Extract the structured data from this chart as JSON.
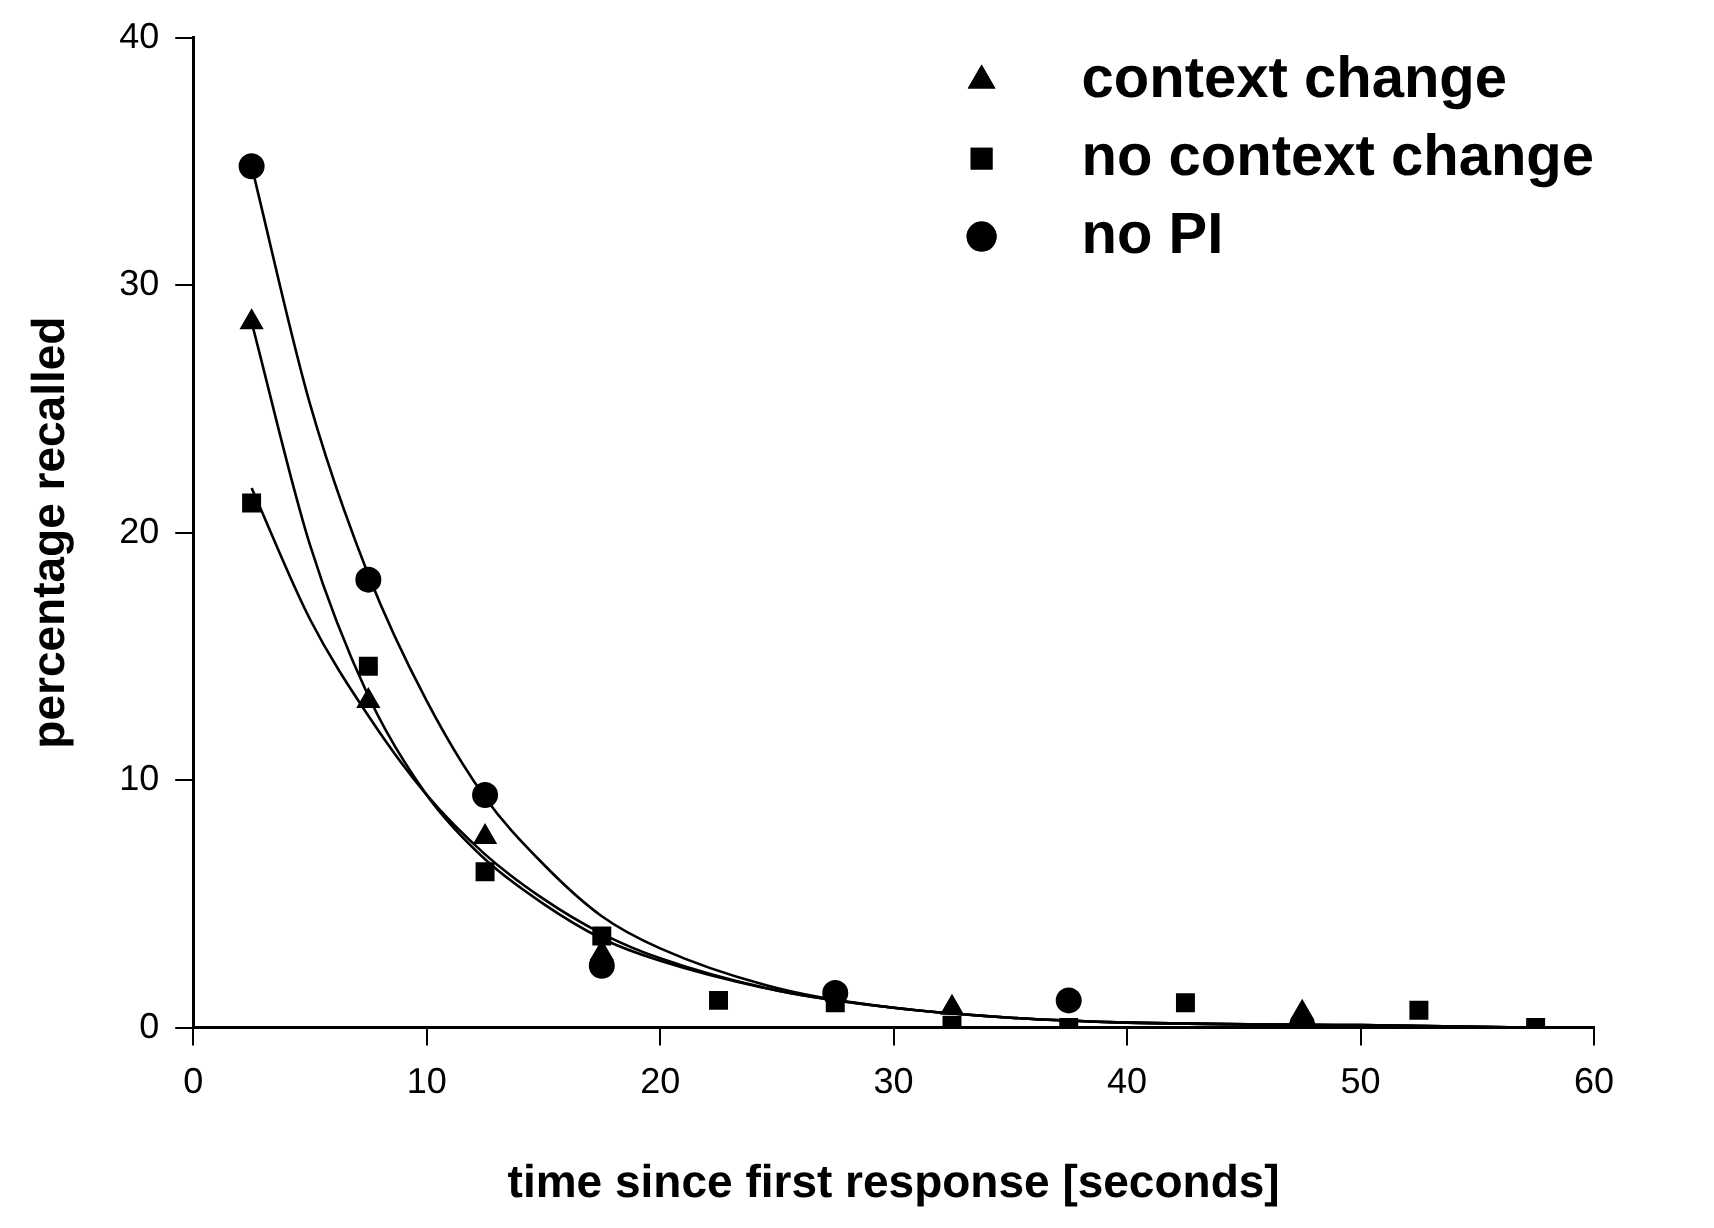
{
  "chart_data": {
    "type": "scatter",
    "xlabel": "time since first response [seconds]",
    "ylabel": "percentage recalled",
    "xlim": [
      0,
      60
    ],
    "xticks": [
      0,
      10,
      20,
      30,
      40,
      50,
      60
    ],
    "ylim": [
      0,
      40
    ],
    "yticks": [
      0,
      10,
      20,
      30,
      40
    ],
    "grid": false,
    "legend": "top right",
    "x": [
      2.5,
      7.5,
      12.5,
      17.5,
      22.5,
      27.5,
      32.5,
      37.5,
      42.5,
      47.5,
      52.5,
      57.5
    ],
    "series": [
      {
        "name": "context change",
        "color": "#000000",
        "marker": "triangle",
        "values": [
          28.5,
          13.2,
          7.7,
          3.0,
          null,
          null,
          0.8,
          null,
          null,
          0.6,
          null,
          null
        ]
      },
      {
        "name": "no context change",
        "color": "#000000",
        "marker": "square",
        "values": [
          21.2,
          14.6,
          6.3,
          3.7,
          1.1,
          1.0,
          0.1,
          0.0,
          1.0,
          null,
          0.7,
          0
        ]
      },
      {
        "name": "no PI",
        "color": "#000000",
        "marker": "circle",
        "values": [
          34.8,
          18.1,
          9.4,
          2.5,
          null,
          1.4,
          null,
          1.1,
          null,
          0.1,
          null,
          null
        ]
      },
      {
        "type": "line",
        "color": "#000000",
        "marker": "none",
        "x": [
          2.5,
          5,
          7.5,
          10,
          12.5,
          15,
          17.5,
          20,
          25,
          30,
          35,
          40,
          50,
          57.5
        ],
        "values": [
          28.5,
          19.5,
          13.4,
          9.4,
          6.8,
          5.0,
          3.6,
          2.7,
          1.5,
          0.8,
          0.4,
          0.2,
          0.1,
          0
        ]
      },
      {
        "type": "line",
        "color": "#000000",
        "marker": "none",
        "x": [
          2.5,
          5,
          7.5,
          10,
          12.5,
          15,
          17.5,
          20,
          25,
          30,
          35,
          40,
          50,
          57.5
        ],
        "values": [
          21.8,
          16.5,
          12.6,
          9.4,
          7.0,
          5.2,
          3.8,
          2.8,
          1.5,
          0.8,
          0.4,
          0.2,
          0.1,
          0
        ]
      },
      {
        "type": "line",
        "color": "#000000",
        "marker": "none",
        "x": [
          2.5,
          5,
          7.5,
          10,
          12.5,
          15,
          17.5,
          20,
          25,
          30,
          35,
          40,
          50,
          57.5
        ],
        "values": [
          34.8,
          25.2,
          18.3,
          13.2,
          9.3,
          6.6,
          4.5,
          3.2,
          1.6,
          0.8,
          0.4,
          0.2,
          0.1,
          0
        ]
      }
    ]
  }
}
